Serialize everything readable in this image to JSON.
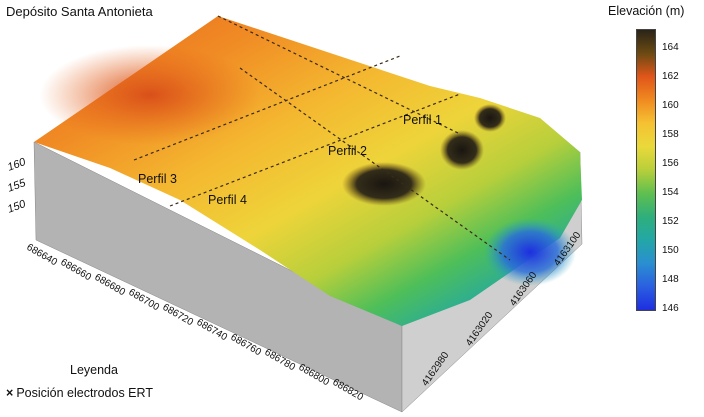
{
  "title": "Depósito Santa Antonieta",
  "colorbar": {
    "title": "Elevación (m)",
    "ticks": [
      "164",
      "162",
      "160",
      "158",
      "156",
      "154",
      "152",
      "150",
      "148",
      "146"
    ],
    "colors": [
      "#2a2418",
      "#6b4a12",
      "#e0561a",
      "#f08a20",
      "#f5c233",
      "#e9d93b",
      "#b8cf3a",
      "#5fbf4f",
      "#2faf7b",
      "#23a7a6",
      "#2a8fd0",
      "#2a5fe0",
      "#1e2ee0"
    ]
  },
  "profiles": [
    "Perfil 1",
    "Perfil 2",
    "Perfil 3",
    "Perfil 4"
  ],
  "z_ticks": [
    "160",
    "155",
    "150"
  ],
  "x_ticks": [
    "686640",
    "686660",
    "686680",
    "686700",
    "686720",
    "686740",
    "686760",
    "686780",
    "686800",
    "686820"
  ],
  "y_ticks": [
    "4162980",
    "4163020",
    "4163060",
    "4163100"
  ],
  "legend": {
    "title": "Leyenda",
    "marker": "×",
    "label": "Posición electrodos ERT"
  }
}
